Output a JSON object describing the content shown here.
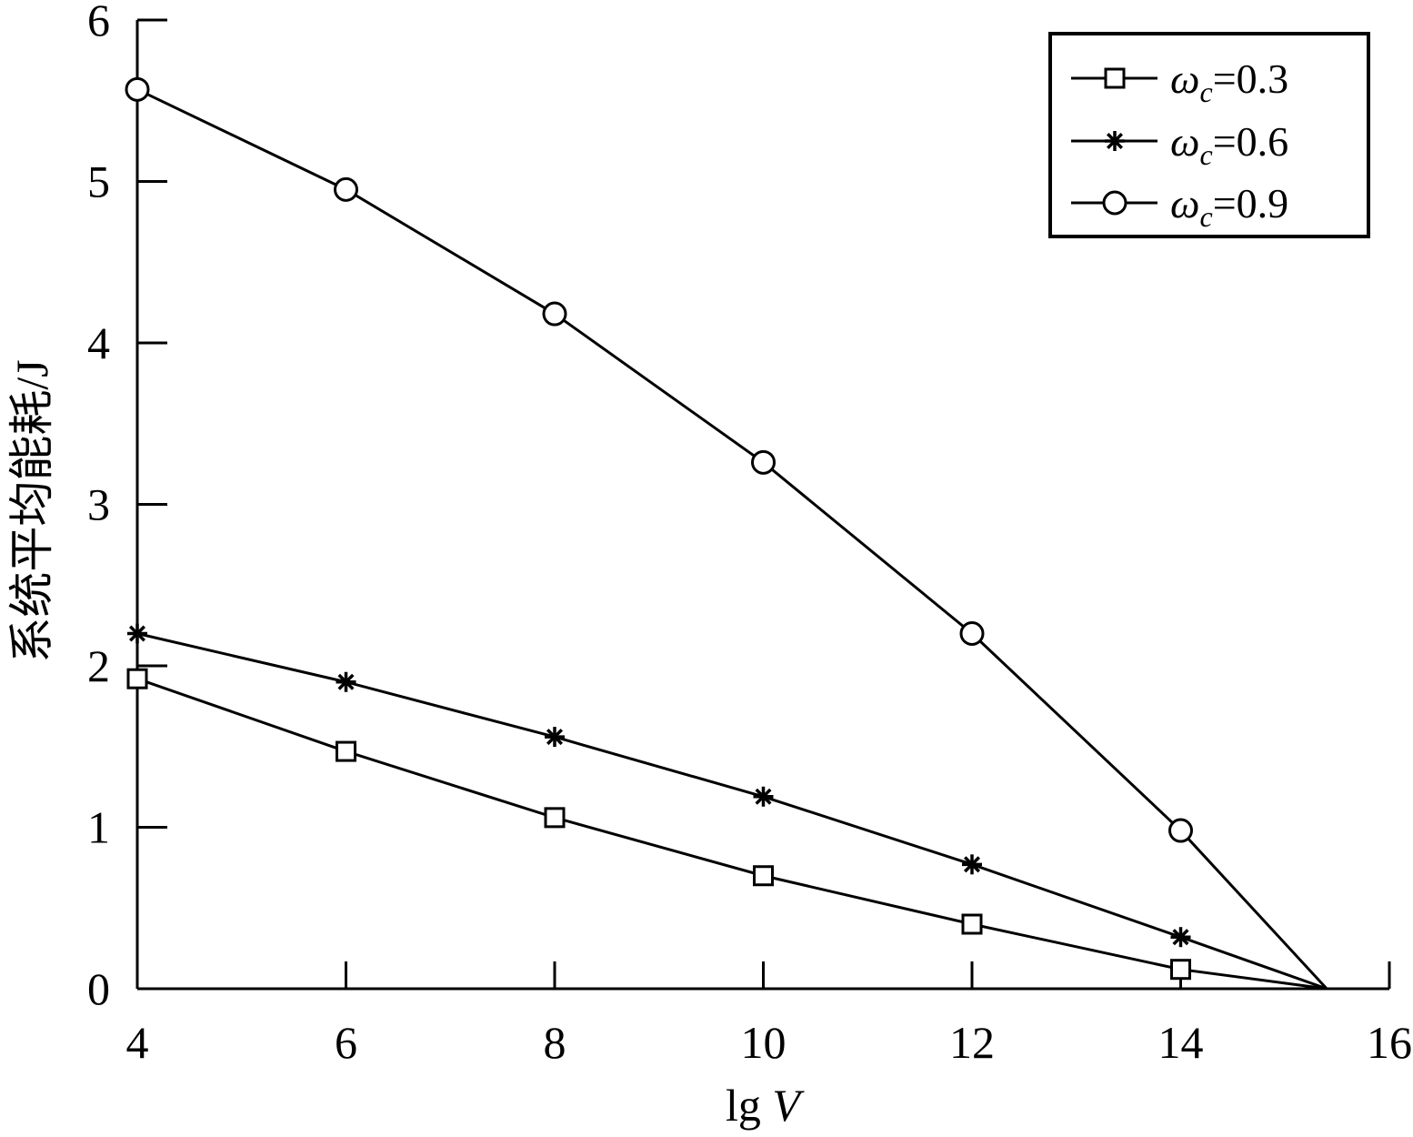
{
  "chart_data": {
    "type": "line",
    "xlabel_prefix": "lg ",
    "xlabel_var": "V",
    "ylabel": "系统平均能耗/J",
    "xlim": [
      4,
      16
    ],
    "ylim": [
      0,
      6
    ],
    "xticks": [
      4,
      6,
      8,
      10,
      12,
      14,
      16
    ],
    "yticks": [
      0,
      1,
      2,
      3,
      4,
      5,
      6
    ],
    "legend_position": "top-right",
    "grid": false,
    "series": [
      {
        "name_symbol": "ω",
        "name_sub": "c",
        "name_value": "=0.3",
        "marker": "square",
        "x": [
          4,
          6,
          8,
          10,
          12,
          14,
          15.4
        ],
        "y": [
          1.92,
          1.47,
          1.06,
          0.7,
          0.4,
          0.12,
          0
        ]
      },
      {
        "name_symbol": "ω",
        "name_sub": "c",
        "name_value": "=0.6",
        "marker": "star",
        "x": [
          4,
          6,
          8,
          10,
          12,
          14,
          15.4
        ],
        "y": [
          2.2,
          1.9,
          1.56,
          1.19,
          0.77,
          0.32,
          0
        ]
      },
      {
        "name_symbol": "ω",
        "name_sub": "c",
        "name_value": "=0.9",
        "marker": "circle",
        "x": [
          4,
          6,
          8,
          10,
          12,
          14,
          15.4
        ],
        "y": [
          5.57,
          4.95,
          4.18,
          3.26,
          2.2,
          0.98,
          0
        ]
      }
    ]
  }
}
